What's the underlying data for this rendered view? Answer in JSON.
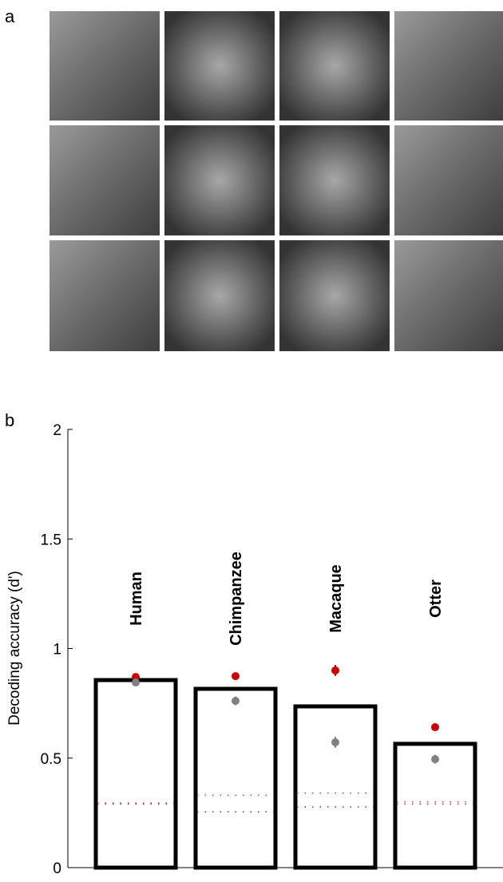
{
  "panel_a": {
    "label": "a"
  },
  "chart_data": {
    "type": "bar",
    "panel_label": "b",
    "ylabel": "Decoding accuracy (d')",
    "categories": [
      "Human",
      "Chimpanzee",
      "Macaque",
      "Otter"
    ],
    "values": [
      0.856,
      0.816,
      0.736,
      0.565
    ],
    "color": "#000000",
    "markers": [
      {
        "color": "#cc0000",
        "values": [
          0.87,
          0.874,
          0.9,
          0.641
        ],
        "errors": [
          0.01,
          0.01,
          0.025,
          0.01
        ]
      },
      {
        "color": "#808080",
        "values": [
          0.845,
          0.761,
          0.572,
          0.495
        ],
        "errors": [
          0.015,
          0.02,
          0.025,
          0.02
        ]
      }
    ],
    "chance_lines": [
      {
        "color": "#dd3333",
        "values": [
          0.295,
          0.33,
          0.34,
          0.3
        ]
      },
      {
        "color": "#aa2222",
        "values": [
          0.29,
          0.255,
          0.277,
          0.29
        ]
      }
    ],
    "ylim": [
      0,
      2
    ],
    "yticks": [
      0,
      0.5,
      1,
      1.5,
      2
    ]
  }
}
